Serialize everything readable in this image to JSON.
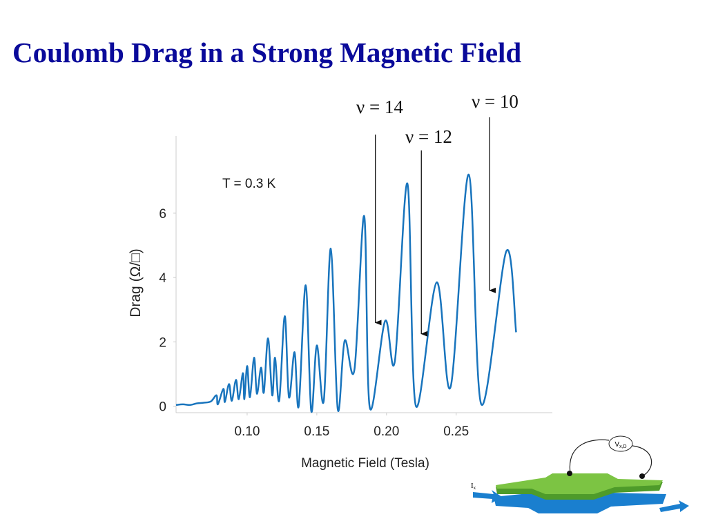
{
  "slide_title": "Coulomb Drag in a Strong Magnetic Field",
  "chart_data": {
    "type": "line",
    "x_label": "Magnetic Field (Tesla)",
    "y_label": "Drag (Ω/□)",
    "color": "#1874bd",
    "xlim": [
      0.049,
      0.319
    ],
    "ylim": [
      -0.2,
      8.4
    ],
    "xticks": [
      {
        "value": 0.1,
        "label": "0.10"
      },
      0.15,
      {
        "value": 0.2,
        "label": "0.20"
      },
      0.25
    ],
    "yticks": [
      0,
      2,
      4,
      6
    ],
    "grid": false,
    "x": [
      0.049,
      0.054,
      0.059,
      0.064,
      0.069,
      0.074,
      0.078,
      0.079,
      0.083,
      0.084,
      0.087,
      0.089,
      0.092,
      0.094,
      0.097,
      0.098,
      0.1,
      0.102,
      0.105,
      0.107,
      0.11,
      0.112,
      0.115,
      0.118,
      0.12,
      0.123,
      0.127,
      0.13,
      0.134,
      0.137,
      0.142,
      0.146,
      0.15,
      0.155,
      0.16,
      0.165,
      0.17,
      0.177,
      0.184,
      0.188,
      0.199,
      0.206,
      0.215,
      0.221,
      0.236,
      0.246,
      0.259,
      0.268,
      0.286,
      0.293
    ],
    "values": [
      0.04,
      0.06,
      0.04,
      0.09,
      0.11,
      0.15,
      0.34,
      0.06,
      0.54,
      0.13,
      0.69,
      0.17,
      0.82,
      0.22,
      1.03,
      0.22,
      1.25,
      0.28,
      1.51,
      0.39,
      1.2,
      0.43,
      2.11,
      0.34,
      1.51,
      0.17,
      2.8,
      0.28,
      1.68,
      0.0,
      3.76,
      -0.15,
      1.89,
      0.17,
      4.9,
      -0.09,
      2.04,
      1.14,
      5.91,
      -0.04,
      2.65,
      1.4,
      6.92,
      0.02,
      3.85,
      0.6,
      7.2,
      0.06,
      4.82,
      2.3
    ],
    "annotations": [
      {
        "text": "T = 0.3 K"
      },
      {
        "text": "ν = 14",
        "x": 0.192,
        "y": 2.6
      },
      {
        "text": "ν = 12",
        "x": 0.225,
        "y": 2.25
      },
      {
        "text": "ν = 10",
        "x": 0.274,
        "y": 3.6
      }
    ]
  },
  "figure": {
    "voltage_label": "V",
    "voltage_subscript": "x,D",
    "current_label": "I",
    "current_subscript": "x"
  }
}
